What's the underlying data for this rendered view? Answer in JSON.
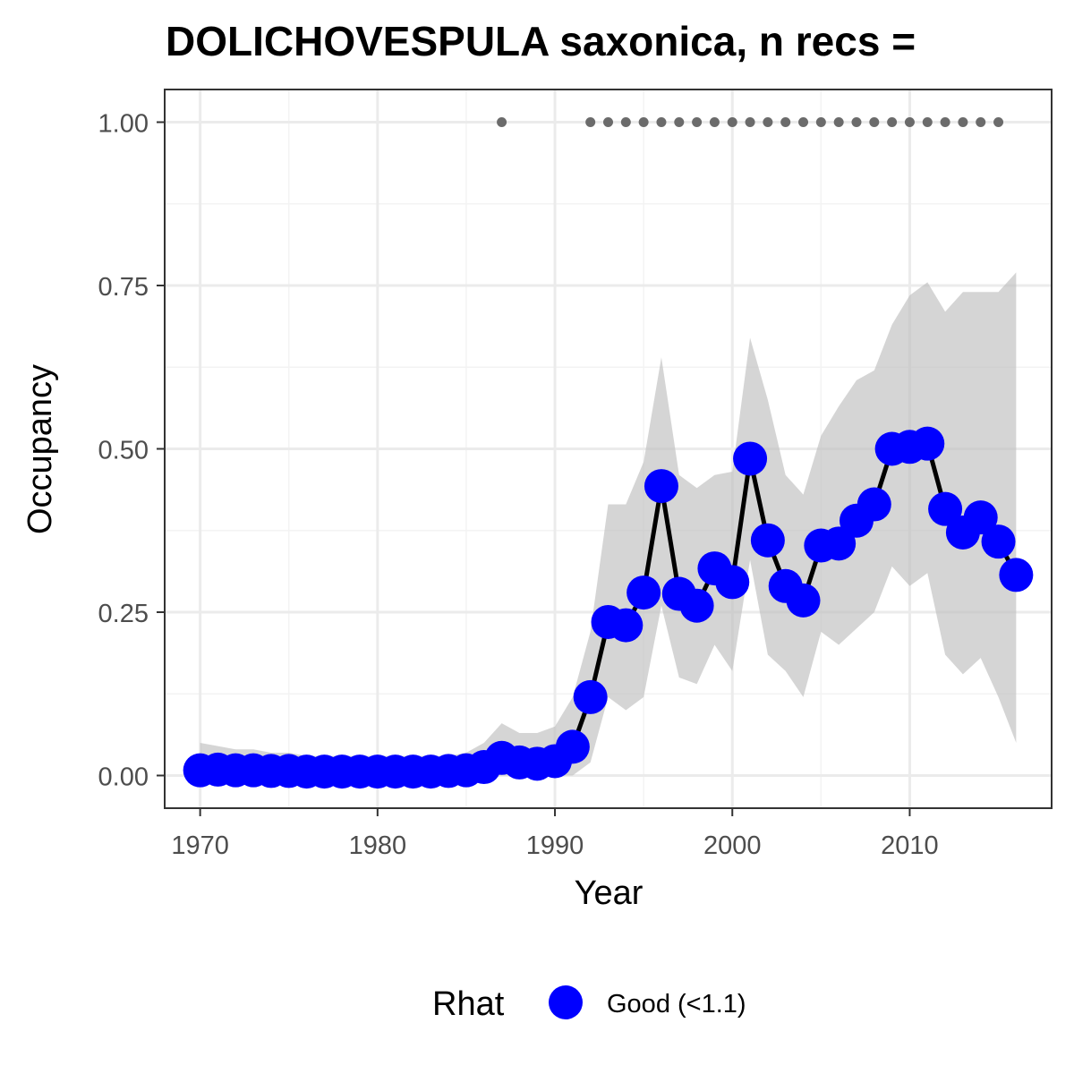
{
  "chart_data": {
    "type": "line",
    "title": "DOLICHOVESPULA saxonica, n recs =",
    "xlabel": "Year",
    "ylabel": "Occupancy",
    "xlim": [
      1968,
      2018
    ],
    "ylim": [
      -0.05,
      1.05
    ],
    "x_ticks": [
      1970,
      1980,
      1990,
      2000,
      2010
    ],
    "y_ticks": [
      0.0,
      0.25,
      0.5,
      0.75,
      1.0
    ],
    "x_tick_labels": [
      "1970",
      "1980",
      "1990",
      "2000",
      "2010"
    ],
    "y_tick_labels": [
      "0.00",
      "0.25",
      "0.50",
      "0.75",
      "1.00"
    ],
    "grid": true,
    "legend": {
      "title": "Rhat",
      "position": "bottom",
      "entries": [
        {
          "label": "Good (<1.1)",
          "color": "#0000ff"
        }
      ]
    },
    "colors": {
      "points": "#0000ff",
      "line": "#000000",
      "ribbon": "#bebebe",
      "record_dots": "#6b6b6b",
      "panel_border": "#333333",
      "grid_major": "#ebebeb",
      "grid_minor": "#f3f3f3"
    },
    "series": [
      {
        "x": [
          1970,
          1971,
          1972,
          1973,
          1974,
          1975,
          1976,
          1977,
          1978,
          1979,
          1980,
          1981,
          1982,
          1983,
          1984,
          1985,
          1986,
          1987,
          1988,
          1989,
          1990,
          1991,
          1992,
          1993,
          1994,
          1995,
          1996,
          1997,
          1998,
          1999,
          2000,
          2001,
          2002,
          2003,
          2004,
          2005,
          2006,
          2007,
          2008,
          2009,
          2010,
          2011,
          2012,
          2013,
          2014,
          2015,
          2016
        ],
        "y": [
          0.008,
          0.009,
          0.008,
          0.008,
          0.007,
          0.007,
          0.006,
          0.006,
          0.006,
          0.006,
          0.006,
          0.006,
          0.006,
          0.006,
          0.007,
          0.008,
          0.013,
          0.027,
          0.02,
          0.018,
          0.022,
          0.044,
          0.12,
          0.235,
          0.23,
          0.28,
          0.443,
          0.278,
          0.26,
          0.317,
          0.296,
          0.485,
          0.36,
          0.29,
          0.268,
          0.352,
          0.355,
          0.39,
          0.415,
          0.5,
          0.503,
          0.508,
          0.408,
          0.372,
          0.395,
          0.358,
          0.307
        ],
        "lower": [
          0.0,
          0.0,
          0.0,
          0.0,
          0.0,
          0.0,
          0.0,
          0.0,
          0.0,
          0.0,
          0.0,
          0.0,
          0.0,
          0.0,
          0.0,
          0.0,
          0.0,
          0.0,
          0.0,
          0.0,
          0.0,
          0.0,
          0.02,
          0.12,
          0.1,
          0.12,
          0.26,
          0.15,
          0.14,
          0.2,
          0.16,
          0.33,
          0.185,
          0.16,
          0.12,
          0.22,
          0.2,
          0.225,
          0.25,
          0.32,
          0.29,
          0.31,
          0.185,
          0.155,
          0.18,
          0.12,
          0.05
        ],
        "upper": [
          0.05,
          0.045,
          0.04,
          0.04,
          0.035,
          0.035,
          0.03,
          0.03,
          0.03,
          0.03,
          0.03,
          0.03,
          0.03,
          0.03,
          0.03,
          0.035,
          0.05,
          0.08,
          0.065,
          0.065,
          0.075,
          0.12,
          0.22,
          0.415,
          0.415,
          0.48,
          0.64,
          0.46,
          0.44,
          0.46,
          0.465,
          0.67,
          0.575,
          0.46,
          0.43,
          0.52,
          0.565,
          0.605,
          0.62,
          0.69,
          0.735,
          0.755,
          0.71,
          0.74,
          0.74,
          0.74,
          0.77
        ]
      }
    ],
    "records": {
      "y": 1.0,
      "x": [
        1987,
        1992,
        1993,
        1994,
        1995,
        1996,
        1997,
        1998,
        1999,
        2000,
        2001,
        2002,
        2003,
        2004,
        2005,
        2006,
        2007,
        2008,
        2009,
        2010,
        2011,
        2012,
        2013,
        2014,
        2015
      ]
    }
  }
}
